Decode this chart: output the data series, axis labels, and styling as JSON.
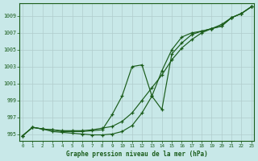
{
  "title": "Graphe pression niveau de la mer (hPa)",
  "background_color": "#c8e8e8",
  "grid_color": "#b0cccc",
  "line_color": "#1a5c1a",
  "x_ticks": [
    0,
    1,
    2,
    3,
    4,
    5,
    6,
    7,
    8,
    9,
    10,
    11,
    12,
    13,
    14,
    15,
    16,
    17,
    18,
    19,
    20,
    21,
    22,
    23
  ],
  "ylim": [
    994.2,
    1010.5
  ],
  "xlim": [
    -0.3,
    23.3
  ],
  "y_ticks": [
    995,
    997,
    999,
    1001,
    1003,
    1005,
    1007,
    1009
  ],
  "series1": [
    994.8,
    995.8,
    995.6,
    995.5,
    995.4,
    995.4,
    995.4,
    995.5,
    995.7,
    995.9,
    996.5,
    997.5,
    999.0,
    1000.5,
    1002.0,
    1003.8,
    1005.2,
    1006.2,
    1007.0,
    1007.5,
    1008.0,
    1008.8,
    1009.3,
    1010.1
  ],
  "series2": [
    994.8,
    995.8,
    995.6,
    995.3,
    995.2,
    995.1,
    995.0,
    994.9,
    994.9,
    995.0,
    995.3,
    996.0,
    997.5,
    999.5,
    1002.5,
    1005.0,
    1006.5,
    1007.0,
    1007.2,
    1007.5,
    1007.8,
    1008.8,
    1009.3,
    1010.1
  ],
  "series3": [
    994.8,
    995.8,
    995.6,
    995.5,
    995.3,
    995.3,
    995.3,
    995.4,
    995.5,
    997.3,
    999.5,
    1003.0,
    1003.2,
    999.5,
    997.9,
    1004.5,
    1005.8,
    1006.8,
    1007.2,
    1007.5,
    1007.8,
    1008.8,
    1009.3,
    1010.1
  ]
}
